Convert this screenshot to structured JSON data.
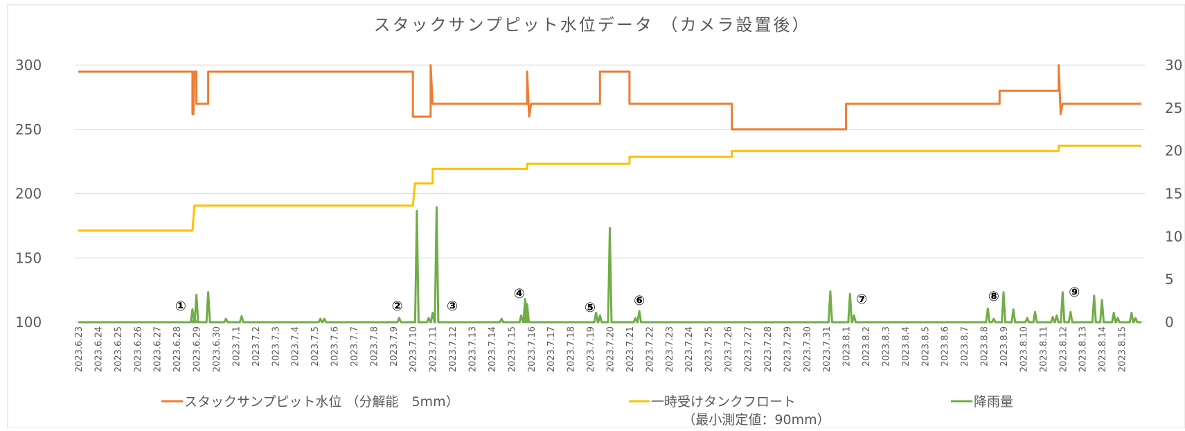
{
  "chart_data": {
    "type": "line",
    "title": "スタックサンプピット水位データ （カメラ設置後）",
    "colors": {
      "water_level": "#ED7D31",
      "tank_float": "#FFC000",
      "rainfall": "#70AD47",
      "grid": "#D9D9D9",
      "text": "#595959"
    },
    "y_left": {
      "ylim": [
        100,
        300
      ],
      "ticks": [
        100,
        150,
        200,
        250,
        300
      ]
    },
    "y_right": {
      "ylim": [
        0,
        30
      ],
      "ticks": [
        0,
        5,
        10,
        15,
        20,
        25,
        30
      ],
      "tick_labels": [
        "0",
        "5",
        "10",
        "15",
        "20",
        "25",
        "30"
      ]
    },
    "categories": [
      "2023.6.23",
      "2023.6.24",
      "2023.6.25",
      "2023.6.26",
      "2023.6.27",
      "2023.6.28",
      "2023.6.29",
      "2023.6.30",
      "2023.7.1",
      "2023.7.2",
      "2023.7.3",
      "2023.7.4",
      "2023.7.5",
      "2023.7.6",
      "2023.7.7",
      "2023.7.8",
      "2023.7.9",
      "2023.7.10",
      "2023.7.11",
      "2023.7.12",
      "2023.7.13",
      "2023.7.14",
      "2023.7.15",
      "2023.7.16",
      "2023.7.17",
      "2023.7.18",
      "2023.7.19",
      "2023.7.20",
      "2023.7.21",
      "2023.7.22",
      "2023.7.23",
      "2023.7.24",
      "2023.7.25",
      "2023.7.26",
      "2023.7.27",
      "2023.7.28",
      "2023.7.29",
      "2023.7.30",
      "2023.7.31",
      "2023.8.1",
      "2023.8.2",
      "2023.8.3",
      "2023.8.4",
      "2023.8.5",
      "2023.8.6",
      "2023.8.7",
      "2023.8.8",
      "2023.8.9",
      "2023.8.10",
      "2023.8.11",
      "2023.8.12",
      "2023.8.13",
      "2023.8.14",
      "2023.8.15"
    ],
    "x_range": [
      "2023.6.23",
      "2023.8.16"
    ],
    "series": [
      {
        "name": "スタックサンプピット水位 （分解能　5mm）",
        "axis": "left",
        "points": [
          [
            "2023.6.23",
            295
          ],
          [
            "2023.6.28.8",
            295
          ],
          [
            "2023.6.28.8",
            262
          ],
          [
            "2023.6.28.85",
            262
          ],
          [
            "2023.6.28.9",
            295
          ],
          [
            "2023.6.29",
            295
          ],
          [
            "2023.6.29",
            270
          ],
          [
            "2023.6.29.6",
            270
          ],
          [
            "2023.6.29.6",
            295
          ],
          [
            "2023.7.10",
            295
          ],
          [
            "2023.7.10",
            260
          ],
          [
            "2023.7.10.9",
            260
          ],
          [
            "2023.7.10.9",
            300
          ],
          [
            "2023.7.11.0",
            270
          ],
          [
            "2023.7.15.8",
            270
          ],
          [
            "2023.7.15.8",
            295
          ],
          [
            "2023.7.15.9",
            260
          ],
          [
            "2023.7.16.0",
            270
          ],
          [
            "2023.7.19.5",
            270
          ],
          [
            "2023.7.19.5",
            295
          ],
          [
            "2023.7.21",
            295
          ],
          [
            "2023.7.21",
            270
          ],
          [
            "2023.7.26.2",
            270
          ],
          [
            "2023.7.26.2",
            250
          ],
          [
            "2023.8.1",
            250
          ],
          [
            "2023.8.1",
            270
          ],
          [
            "2023.8.8.8",
            270
          ],
          [
            "2023.8.8.8",
            280
          ],
          [
            "2023.8.11.8",
            280
          ],
          [
            "2023.8.11.8",
            300
          ],
          [
            "2023.8.11.9",
            262
          ],
          [
            "2023.8.12.0",
            270
          ],
          [
            "2023.8.16",
            270
          ]
        ]
      },
      {
        "name": "一時受けタンクフロート",
        "axis": "right",
        "points": [
          [
            "2023.6.23",
            10.7
          ],
          [
            "2023.6.28.8",
            10.7
          ],
          [
            "2023.6.28.9",
            13.6
          ],
          [
            "2023.7.10",
            13.6
          ],
          [
            "2023.7.10.1",
            16.2
          ],
          [
            "2023.7.11",
            16.2
          ],
          [
            "2023.7.11",
            17.9
          ],
          [
            "2023.7.15.8",
            17.9
          ],
          [
            "2023.7.15.8",
            18.5
          ],
          [
            "2023.7.21",
            18.5
          ],
          [
            "2023.7.21",
            19.3
          ],
          [
            "2023.7.26.2",
            19.3
          ],
          [
            "2023.7.26.2",
            20
          ],
          [
            "2023.8.11.8",
            20
          ],
          [
            "2023.8.11.8",
            20.6
          ],
          [
            "2023.8.16",
            20.6
          ]
        ]
      },
      {
        "name": "降雨量",
        "axis": "right",
        "spikes": [
          [
            "2023.6.28.8",
            1.5
          ],
          [
            "2023.6.28.9",
            0.5
          ],
          [
            "2023.6.29",
            3.2
          ],
          [
            "2023.6.29.6",
            3.5
          ],
          [
            "2023.6.30.5",
            0.4
          ],
          [
            "2023.7.1.3",
            0.7
          ],
          [
            "2023.7.5.3",
            0.4
          ],
          [
            "2023.7.5.5",
            0.4
          ],
          [
            "2023.7.9.3",
            0.5
          ],
          [
            "2023.7.10.2",
            13
          ],
          [
            "2023.7.10.8",
            0.5
          ],
          [
            "2023.7.11",
            1.1
          ],
          [
            "2023.7.11.2",
            13.4
          ],
          [
            "2023.7.14.5",
            0.4
          ],
          [
            "2023.7.15.5",
            0.8
          ],
          [
            "2023.7.15.7",
            2.7
          ],
          [
            "2023.7.15.8",
            2.1
          ],
          [
            "2023.7.19.3",
            1.1
          ],
          [
            "2023.7.19.5",
            0.8
          ],
          [
            "2023.7.20",
            11
          ],
          [
            "2023.7.21.3",
            0.5
          ],
          [
            "2023.7.21.5",
            1.3
          ],
          [
            "2023.7.31.2",
            3.6
          ],
          [
            "2023.8.1.2",
            3.3
          ],
          [
            "2023.8.1.4",
            0.8
          ],
          [
            "2023.8.8.2",
            1.6
          ],
          [
            "2023.8.8.5",
            0.4
          ],
          [
            "2023.8.9",
            3.5
          ],
          [
            "2023.8.9.5",
            1.5
          ],
          [
            "2023.8.10.2",
            0.5
          ],
          [
            "2023.8.10.6",
            1.2
          ],
          [
            "2023.8.11.5",
            0.6
          ],
          [
            "2023.8.11.7",
            0.8
          ],
          [
            "2023.8.12",
            3.5
          ],
          [
            "2023.8.12.4",
            1.2
          ],
          [
            "2023.8.13.6",
            3.1
          ],
          [
            "2023.8.14",
            2.6
          ],
          [
            "2023.8.14.6",
            1.1
          ],
          [
            "2023.8.14.8",
            0.5
          ],
          [
            "2023.8.15.5",
            1.1
          ],
          [
            "2023.8.15.7",
            0.5
          ]
        ]
      }
    ],
    "annotations": [
      {
        "label": "①",
        "at": "2023.6.28.2"
      },
      {
        "label": "②",
        "at": "2023.7.9.2"
      },
      {
        "label": "③",
        "at": "2023.7.12"
      },
      {
        "label": "④",
        "at": "2023.7.15.4"
      },
      {
        "label": "⑤",
        "at": "2023.7.19"
      },
      {
        "label": "⑥",
        "at": "2023.7.21.5"
      },
      {
        "label": "⑦",
        "at": "2023.8.1.8"
      },
      {
        "label": "⑧",
        "at": "2023.8.8.5"
      },
      {
        "label": "⑨",
        "at": "2023.8.12.6"
      }
    ],
    "legend": {
      "placement": "bottom",
      "note": "（最小測定値：90mm）"
    }
  }
}
